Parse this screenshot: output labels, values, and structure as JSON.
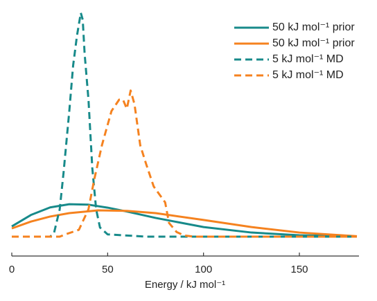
{
  "chart_data": {
    "type": "line",
    "x_label": "Energy / kJ mol⁻¹",
    "xlim": [
      0,
      180
    ],
    "xticks": [
      0,
      50,
      100,
      150
    ],
    "ylim": [
      0,
      1
    ],
    "legend": "upper right",
    "series": [
      {
        "name": "50 kJ mol⁻¹ prior",
        "color": "#178a8a",
        "style": "solid",
        "x": [
          0,
          10,
          20,
          30,
          40,
          50,
          60,
          75,
          100,
          125,
          150,
          180
        ],
        "values": [
          0.045,
          0.095,
          0.128,
          0.142,
          0.14,
          0.127,
          0.11,
          0.082,
          0.042,
          0.018,
          0.006,
          0.001
        ]
      },
      {
        "name": "50 kJ mol⁻¹ prior",
        "color": "#f5821f",
        "style": "solid",
        "x": [
          0,
          10,
          20,
          30,
          45,
          60,
          75,
          100,
          125,
          150,
          180
        ],
        "values": [
          0.036,
          0.066,
          0.088,
          0.103,
          0.115,
          0.113,
          0.103,
          0.073,
          0.042,
          0.018,
          0.002
        ]
      },
      {
        "name": "5 kJ mol⁻¹ MD",
        "color": "#178a8a",
        "style": "dashed",
        "x": [
          0,
          20,
          22,
          25,
          27,
          30,
          32,
          34,
          36,
          37,
          38,
          40,
          42,
          44,
          46,
          50,
          60,
          70,
          180
        ],
        "values": [
          0,
          0,
          0.015,
          0.12,
          0.28,
          0.55,
          0.75,
          0.88,
          0.98,
          0.95,
          0.8,
          0.6,
          0.3,
          0.12,
          0.04,
          0.01,
          0.005,
          0,
          0
        ]
      },
      {
        "name": "5 kJ mol⁻¹ MD",
        "color": "#f5821f",
        "style": "dashed",
        "x": [
          0,
          25,
          28,
          35,
          40,
          43,
          47,
          52,
          56,
          58,
          60,
          62,
          64,
          67,
          70,
          74,
          80,
          82,
          86,
          90,
          95,
          180
        ],
        "values": [
          0,
          0,
          0.01,
          0.03,
          0.12,
          0.25,
          0.4,
          0.55,
          0.6,
          0.6,
          0.56,
          0.64,
          0.58,
          0.4,
          0.32,
          0.22,
          0.15,
          0.06,
          0.02,
          0.005,
          0,
          0
        ]
      }
    ]
  }
}
